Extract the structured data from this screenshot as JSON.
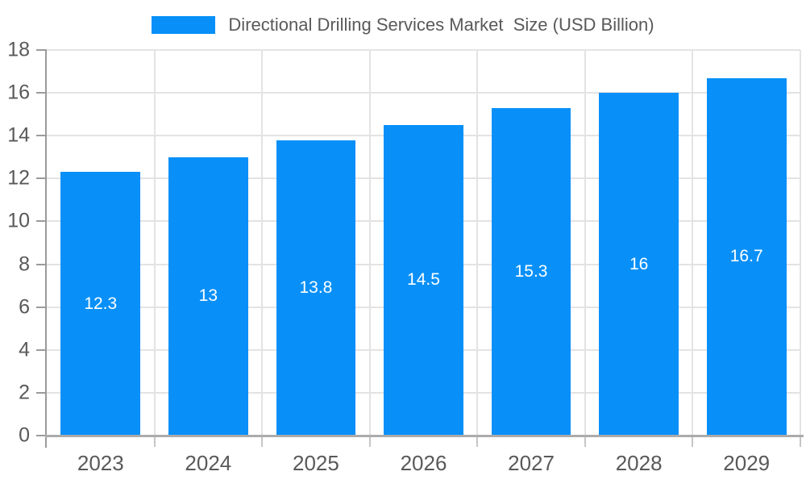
{
  "chart_data": {
    "type": "bar",
    "title": "Directional Drilling Services Market  Size (USD Billion)",
    "categories": [
      "2023",
      "2024",
      "2025",
      "2026",
      "2027",
      "2028",
      "2029"
    ],
    "values": [
      12.3,
      13,
      13.8,
      14.5,
      15.3,
      16,
      16.7
    ],
    "value_labels": [
      "12.3",
      "13",
      "13.8",
      "14.5",
      "15.3",
      "16",
      "16.7"
    ],
    "xlabel": "",
    "ylabel": "",
    "ylim": [
      0,
      18
    ],
    "yticks": [
      0,
      2,
      4,
      6,
      8,
      10,
      12,
      14,
      16,
      18
    ],
    "grid": true,
    "legend_position": "top",
    "colors": {
      "bar": "#0890F8",
      "bar_value_label": "#FFFFFF",
      "grid_line": "#E3E3E3",
      "axis_line": "#9B9B9B",
      "axis_bottom_line": "#ABABAB",
      "x_tick_mark": "#C6C6C6",
      "tick_text": "#595959",
      "title_text": "#595959",
      "background": "#FFFFFF"
    }
  }
}
